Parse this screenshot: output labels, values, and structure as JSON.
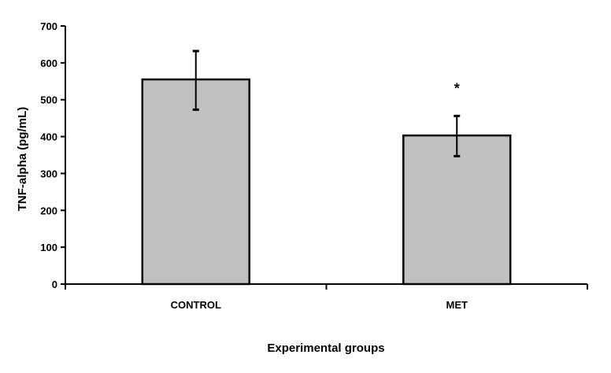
{
  "chart_data": {
    "type": "bar",
    "title": "",
    "xlabel": "Experimental groups",
    "ylabel": "TNF-alpha (pg/mL)",
    "ylim": [
      0,
      700
    ],
    "yticks": [
      0,
      100,
      200,
      300,
      400,
      500,
      600,
      700
    ],
    "categories": [
      "CONTROL",
      "MET"
    ],
    "values": [
      555,
      403
    ],
    "error_upper": [
      632,
      456
    ],
    "error_lower": [
      473,
      347
    ],
    "annotations": [
      "",
      "*"
    ],
    "bar_color": "#c0c0c0",
    "grid": false,
    "legend": "none"
  }
}
